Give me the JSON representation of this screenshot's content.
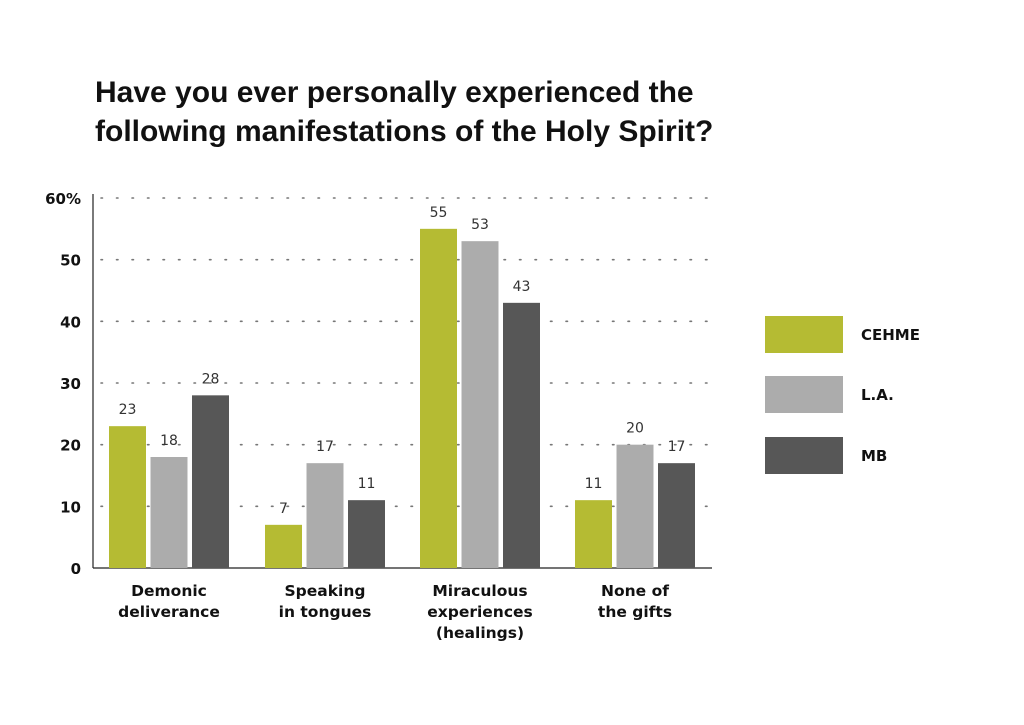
{
  "title_lines": [
    "Have you ever personally experienced the",
    "following manifestations of the Holy Spirit?"
  ],
  "chart_data": {
    "type": "bar",
    "categories": [
      [
        "Demonic",
        "deliverance"
      ],
      [
        "Speaking",
        "in tongues"
      ],
      [
        "Miraculous",
        "experiences",
        "(healings)"
      ],
      [
        "None of",
        "the gifts"
      ]
    ],
    "series": [
      {
        "name": "CEHME",
        "color": "#b5bb33",
        "values": [
          23,
          7,
          55,
          11
        ]
      },
      {
        "name": "L.A.",
        "color": "#acacac",
        "values": [
          18,
          17,
          53,
          20
        ]
      },
      {
        "name": "MB",
        "color": "#575757",
        "values": [
          28,
          11,
          43,
          17
        ]
      }
    ],
    "y_ticks": [
      {
        "value": 0,
        "label": "0"
      },
      {
        "value": 10,
        "label": "10"
      },
      {
        "value": 20,
        "label": "20"
      },
      {
        "value": 30,
        "label": "30"
      },
      {
        "value": 40,
        "label": "40"
      },
      {
        "value": 50,
        "label": "50"
      },
      {
        "value": 60,
        "label": "60%"
      }
    ],
    "ylim": [
      0,
      60
    ],
    "grid": "dotted",
    "legend_position": "right",
    "data_labels": true
  }
}
